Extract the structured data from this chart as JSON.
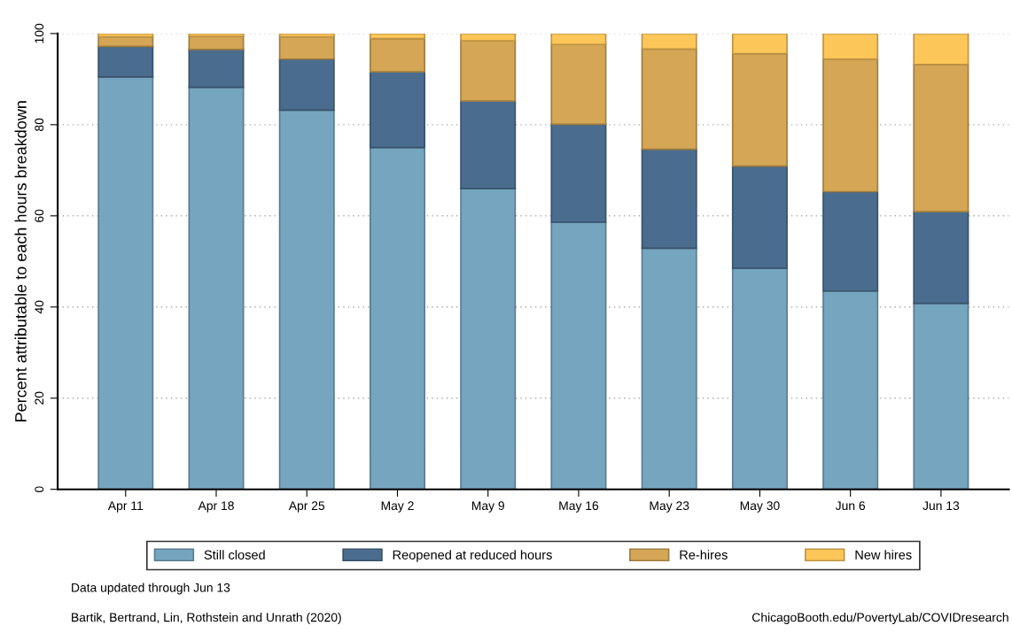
{
  "chart_data": {
    "type": "bar",
    "stacked": true,
    "ylabel": "Percent attributable to each hours breakdown",
    "categories": [
      "Apr 11",
      "Apr 18",
      "Apr 25",
      "May 2",
      "May 9",
      "May 16",
      "May 23",
      "May 30",
      "Jun 6",
      "Jun 13"
    ],
    "series": [
      {
        "name": "Still closed",
        "color": "#76a5bf",
        "values": [
          90.5,
          88.2,
          83.2,
          75.0,
          66.0,
          58.6,
          52.9,
          48.5,
          43.5,
          40.8
        ]
      },
      {
        "name": "Reopened at reduced hours",
        "color": "#4a6d8f",
        "values": [
          6.7,
          8.3,
          11.2,
          16.6,
          19.2,
          21.5,
          21.7,
          22.4,
          21.8,
          20.1
        ]
      },
      {
        "name": "Re-hires",
        "color": "#d4a655",
        "values": [
          2.1,
          2.9,
          4.9,
          7.3,
          13.2,
          17.5,
          22.0,
          24.7,
          29.1,
          32.3
        ]
      },
      {
        "name": "New hires",
        "color": "#fdc659",
        "values": [
          0.7,
          0.6,
          0.7,
          1.1,
          1.6,
          2.4,
          3.4,
          4.4,
          5.6,
          6.8
        ]
      }
    ],
    "ylim": [
      0,
      100
    ],
    "yticks": [
      0,
      20,
      40,
      60,
      80,
      100
    ],
    "grid": "y",
    "legend": "bottom",
    "annotations": [
      "Data updated through Jun 13",
      "Bartik, Bertrand, Lin, Rothstein and Unrath (2020)",
      "ChicagoBooth.edu/PovertyLab/COVIDresearch"
    ]
  }
}
